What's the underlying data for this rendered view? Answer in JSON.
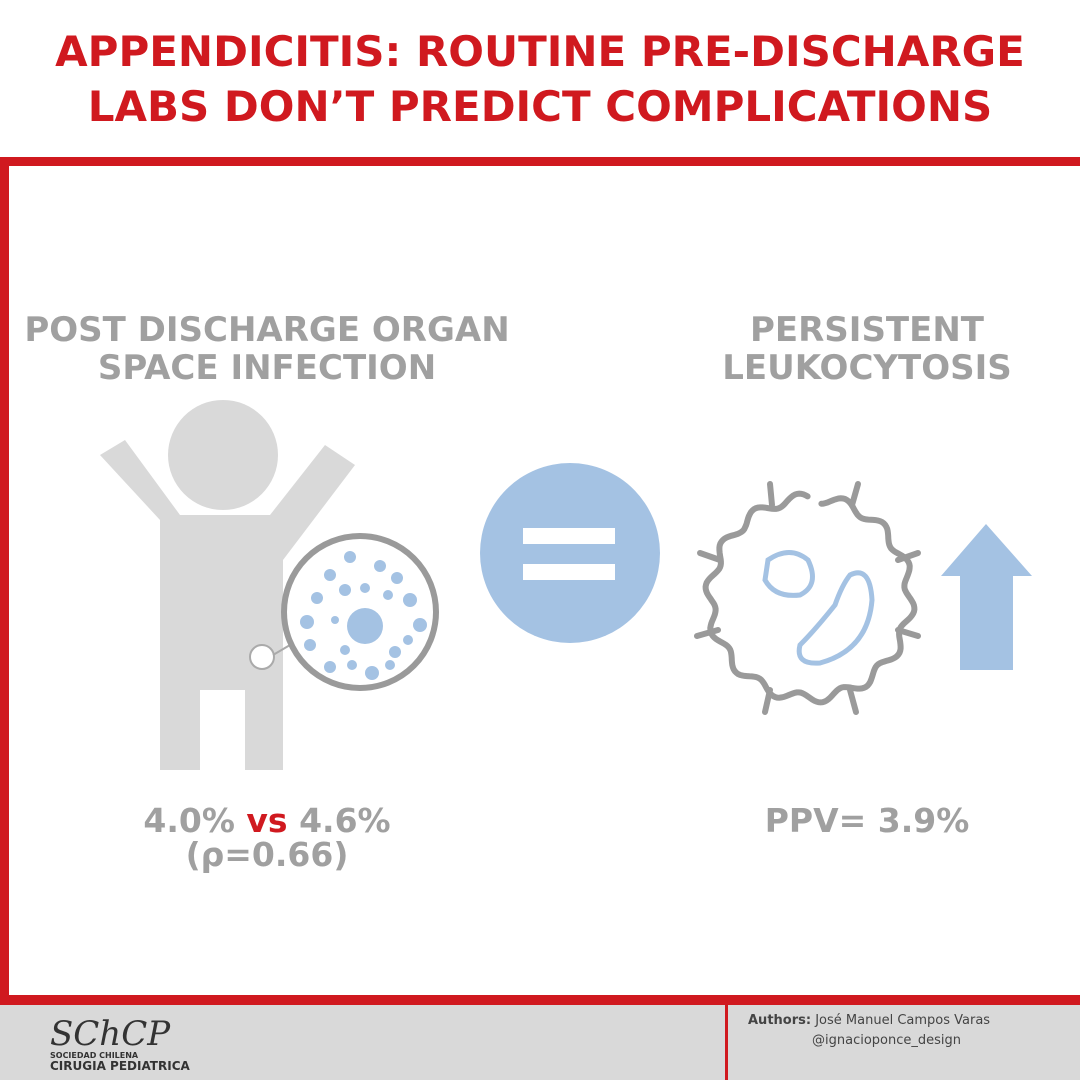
{
  "header": {
    "title_lines": [
      "APPENDICITIS: ROUTINE PRE-DISCHARGE",
      "LABS DON’T PREDICT COMPLICATIONS"
    ]
  },
  "left": {
    "heading_lines": [
      "POST DISCHARGE ORGAN",
      "SPACE INFECTION"
    ],
    "stat_a": "4.0%",
    "versus": "vs",
    "stat_b": "4.6%",
    "p_value": "(ρ=0.66)"
  },
  "right": {
    "heading_lines": [
      "PERSISTENT",
      "LEUKOCYTOSIS"
    ],
    "stat": "PPV= 3.9%"
  },
  "footer": {
    "logo": "SChCP",
    "logo_sub_1": "SOCIEDAD CHILENA",
    "logo_sub_2": "CIRUGIA PEDIATRICA",
    "authors_label": "Authors:",
    "author": "José Manuel Campos Varas",
    "designer": "@ignacioponce_design"
  }
}
